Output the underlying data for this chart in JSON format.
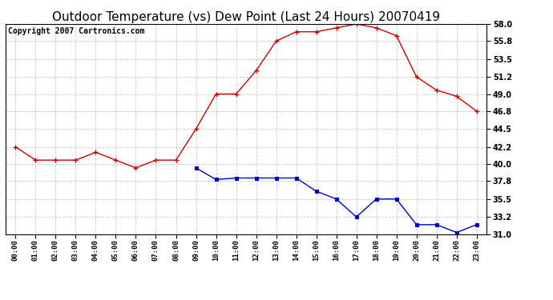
{
  "title": "Outdoor Temperature (vs) Dew Point (Last 24 Hours) 20070419",
  "copyright": "Copyright 2007 Cartronics.com",
  "hours": [
    "00:00",
    "01:00",
    "02:00",
    "03:00",
    "04:00",
    "05:00",
    "06:00",
    "07:00",
    "08:00",
    "09:00",
    "10:00",
    "11:00",
    "12:00",
    "13:00",
    "14:00",
    "15:00",
    "16:00",
    "17:00",
    "18:00",
    "19:00",
    "20:00",
    "21:00",
    "22:00",
    "23:00"
  ],
  "temp": [
    42.2,
    40.5,
    40.5,
    40.5,
    41.5,
    40.5,
    39.5,
    40.5,
    40.5,
    44.5,
    49.0,
    49.0,
    52.0,
    55.8,
    57.0,
    57.0,
    57.5,
    58.0,
    57.5,
    56.5,
    51.2,
    49.5,
    48.7,
    46.8
  ],
  "dew": [
    null,
    null,
    null,
    null,
    null,
    null,
    null,
    null,
    null,
    39.5,
    38.0,
    38.2,
    38.2,
    38.2,
    38.2,
    36.5,
    35.5,
    33.2,
    35.5,
    35.5,
    32.2,
    32.2,
    31.2,
    32.2
  ],
  "temp_color": "#cc0000",
  "dew_color": "#0000cc",
  "bg_color": "#ffffff",
  "grid_color": "#c8c8c8",
  "ylim": [
    31.0,
    58.0
  ],
  "yticks": [
    31.0,
    33.2,
    35.5,
    37.8,
    40.0,
    42.2,
    44.5,
    46.8,
    49.0,
    51.2,
    53.5,
    55.8,
    58.0
  ],
  "title_fontsize": 11,
  "copyright_fontsize": 7
}
